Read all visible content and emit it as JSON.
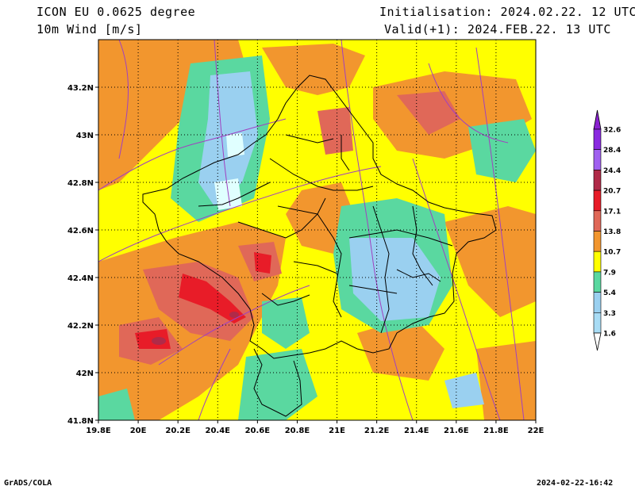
{
  "header": {
    "model_line": "ICON EU 0.0625 degree",
    "variable_line": "10m Wind [m/s]",
    "init_line": "Initialisation: 2024.02.22. 12 UTC",
    "valid_line": "Valid(+1): 2024.FEB.22. 13 UTC"
  },
  "footer": {
    "software": "GrADS/COLA",
    "timestamp": "2024-02-22-16:42"
  },
  "axes": {
    "x_ticks": [
      "19.8E",
      "20E",
      "20.2E",
      "20.4E",
      "20.6E",
      "20.8E",
      "21E",
      "21.2E",
      "21.4E",
      "21.6E",
      "21.8E",
      "22E"
    ],
    "y_ticks": [
      "41.8N",
      "42N",
      "42.2N",
      "42.4N",
      "42.6N",
      "42.8N",
      "43N",
      "43.2N"
    ],
    "lon_range": [
      19.8,
      22.0
    ],
    "lat_range": [
      41.8,
      43.4
    ]
  },
  "colorbar": {
    "labels": [
      "1.6",
      "3.3",
      "5.4",
      "7.9",
      "10.7",
      "13.8",
      "17.1",
      "20.7",
      "24.4",
      "28.4",
      "32.6"
    ],
    "colors": [
      "#e0ffff",
      "#a8dcf5",
      "#9ad0f0",
      "#5ad8a0",
      "#ffff00",
      "#f2962e",
      "#e06858",
      "#e81c28",
      "#b02a48",
      "#a060f0",
      "#8a2ae0",
      "#8a20d0"
    ]
  }
}
